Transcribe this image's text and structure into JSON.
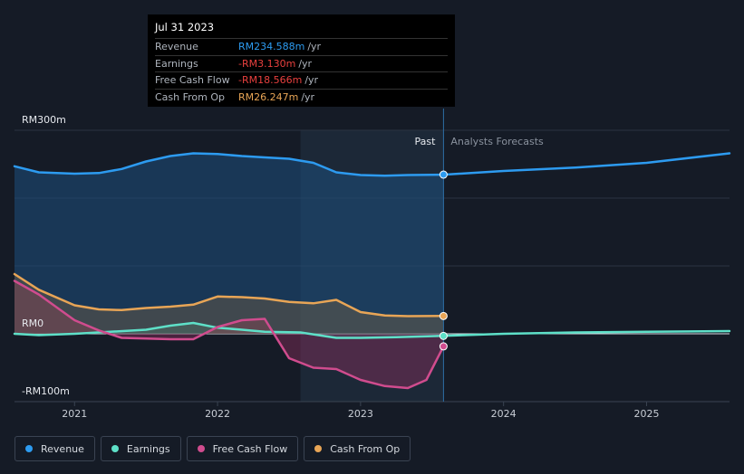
{
  "chart_data": {
    "type": "line",
    "title": "",
    "x_domain": [
      2020.58,
      2025.58
    ],
    "y_domain": [
      -100,
      300
    ],
    "y_axis_labels": [
      {
        "value": 300,
        "label": "RM300m"
      },
      {
        "value": 0,
        "label": "RM0"
      },
      {
        "value": -100,
        "label": "-RM100m"
      }
    ],
    "gridline_values": [
      300,
      200,
      100,
      0
    ],
    "x_ticks": [
      {
        "value": 2021,
        "label": "2021"
      },
      {
        "value": 2022,
        "label": "2022"
      },
      {
        "value": 2023,
        "label": "2023"
      },
      {
        "value": 2024,
        "label": "2024"
      },
      {
        "value": 2025,
        "label": "2025"
      }
    ],
    "past_start": 2022.58,
    "divider": 2023.58,
    "past_label": "Past",
    "forecast_label": "Analysts Forecasts",
    "series": [
      {
        "name": "Revenue",
        "color": "#2d9bf0",
        "points": [
          [
            2020.58,
            247
          ],
          [
            2020.75,
            238
          ],
          [
            2021.0,
            236
          ],
          [
            2021.17,
            237
          ],
          [
            2021.33,
            243
          ],
          [
            2021.5,
            254
          ],
          [
            2021.67,
            262
          ],
          [
            2021.83,
            266
          ],
          [
            2022.0,
            265
          ],
          [
            2022.17,
            262
          ],
          [
            2022.33,
            260
          ],
          [
            2022.5,
            258
          ],
          [
            2022.67,
            252
          ],
          [
            2022.83,
            238
          ],
          [
            2023.0,
            234
          ],
          [
            2023.17,
            233
          ],
          [
            2023.33,
            234
          ],
          [
            2023.58,
            234.588
          ]
        ],
        "forecast": [
          [
            2023.58,
            234.588
          ],
          [
            2024.0,
            240
          ],
          [
            2024.5,
            245
          ],
          [
            2025.0,
            252
          ],
          [
            2025.58,
            266
          ]
        ]
      },
      {
        "name": "Earnings",
        "color": "#5ee0c8",
        "points": [
          [
            2020.58,
            0
          ],
          [
            2020.75,
            -2
          ],
          [
            2021.0,
            0
          ],
          [
            2021.25,
            3
          ],
          [
            2021.5,
            6
          ],
          [
            2021.67,
            12
          ],
          [
            2021.83,
            16
          ],
          [
            2022.0,
            9
          ],
          [
            2022.17,
            6
          ],
          [
            2022.33,
            3
          ],
          [
            2022.58,
            2
          ],
          [
            2022.83,
            -6
          ],
          [
            2023.0,
            -6
          ],
          [
            2023.25,
            -5
          ],
          [
            2023.58,
            -3.13
          ]
        ],
        "forecast": [
          [
            2023.58,
            -3.13
          ],
          [
            2024.0,
            0
          ],
          [
            2024.5,
            2
          ],
          [
            2025.0,
            3
          ],
          [
            2025.58,
            4
          ]
        ]
      },
      {
        "name": "Free Cash Flow",
        "color": "#d04c8e",
        "points": [
          [
            2020.58,
            78
          ],
          [
            2020.75,
            58
          ],
          [
            2021.0,
            20
          ],
          [
            2021.17,
            5
          ],
          [
            2021.33,
            -6
          ],
          [
            2021.5,
            -7
          ],
          [
            2021.67,
            -8
          ],
          [
            2021.83,
            -8
          ],
          [
            2022.0,
            10
          ],
          [
            2022.17,
            20
          ],
          [
            2022.33,
            22
          ],
          [
            2022.5,
            -36
          ],
          [
            2022.67,
            -50
          ],
          [
            2022.83,
            -52
          ],
          [
            2023.0,
            -68
          ],
          [
            2023.17,
            -77
          ],
          [
            2023.33,
            -80
          ],
          [
            2023.46,
            -68
          ],
          [
            2023.58,
            -18.566
          ]
        ]
      },
      {
        "name": "Cash From Op",
        "color": "#e8a556",
        "points": [
          [
            2020.58,
            88
          ],
          [
            2020.75,
            65
          ],
          [
            2021.0,
            42
          ],
          [
            2021.17,
            36
          ],
          [
            2021.33,
            35
          ],
          [
            2021.5,
            38
          ],
          [
            2021.67,
            40
          ],
          [
            2021.83,
            43
          ],
          [
            2022.0,
            55
          ],
          [
            2022.17,
            54
          ],
          [
            2022.33,
            52
          ],
          [
            2022.5,
            47
          ],
          [
            2022.67,
            45
          ],
          [
            2022.83,
            50
          ],
          [
            2023.0,
            32
          ],
          [
            2023.17,
            27
          ],
          [
            2023.33,
            26
          ],
          [
            2023.58,
            26.247
          ]
        ]
      }
    ]
  },
  "tooltip": {
    "date": "Jul 31 2023",
    "rows": [
      {
        "label": "Revenue",
        "value": "RM234.588m",
        "unit": "/yr",
        "color": "#2d9bf0"
      },
      {
        "label": "Earnings",
        "value": "-RM3.130m",
        "unit": "/yr",
        "color": "#e8403e"
      },
      {
        "label": "Free Cash Flow",
        "value": "-RM18.566m",
        "unit": "/yr",
        "color": "#e8403e"
      },
      {
        "label": "Cash From Op",
        "value": "RM26.247m",
        "unit": "/yr",
        "color": "#e8a556"
      }
    ]
  },
  "legend": [
    {
      "label": "Revenue",
      "color": "#2d9bf0"
    },
    {
      "label": "Earnings",
      "color": "#5ee0c8"
    },
    {
      "label": "Free Cash Flow",
      "color": "#d04c8e"
    },
    {
      "label": "Cash From Op",
      "color": "#e8a556"
    }
  ]
}
